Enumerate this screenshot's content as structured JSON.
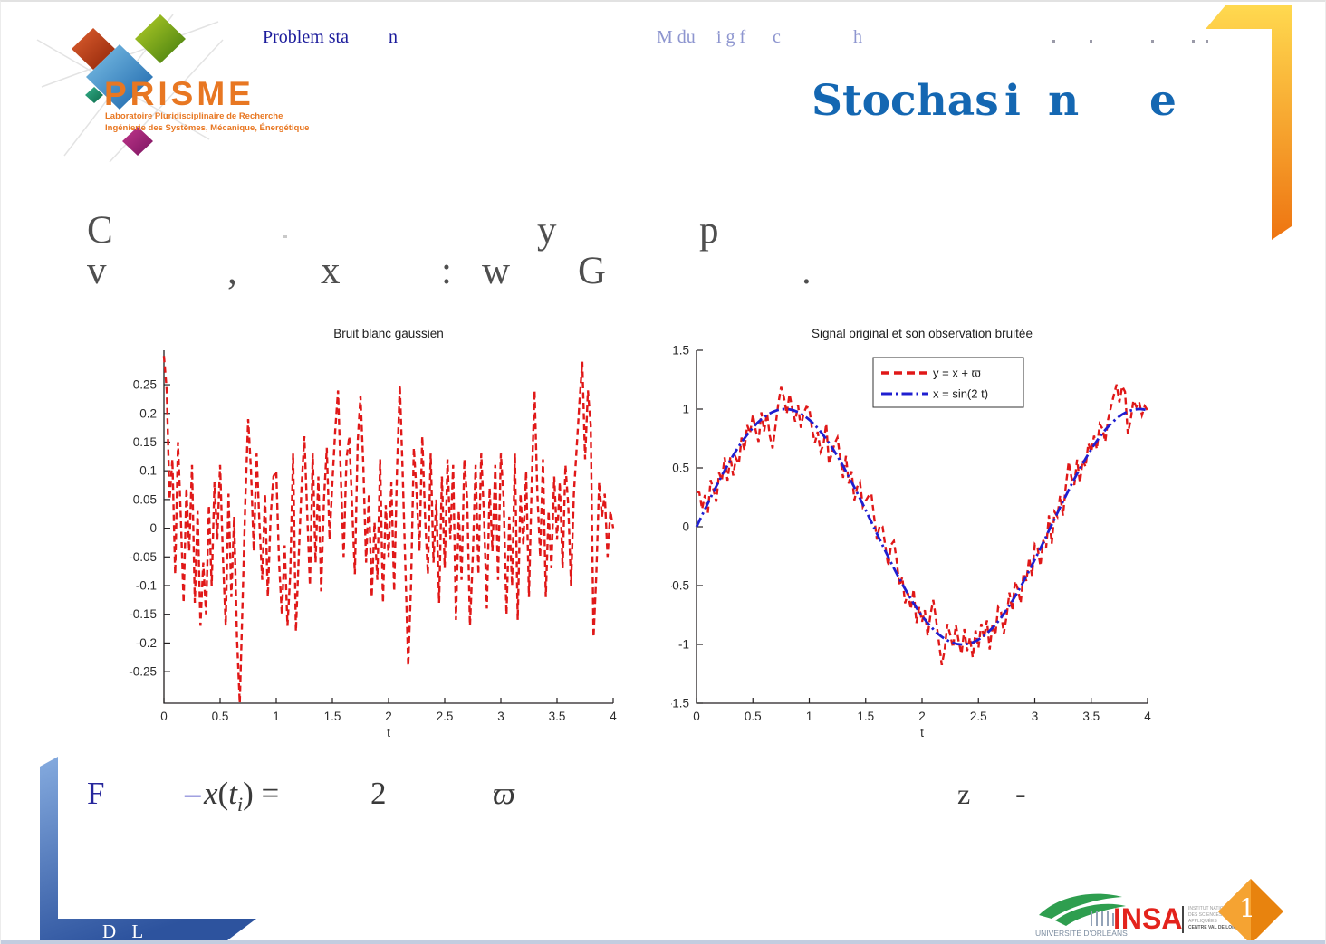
{
  "header": {
    "left_fragment": "Problem sta",
    "left_fragment2": "n",
    "center_fragments": [
      "M du",
      "i g f",
      "c",
      "h"
    ]
  },
  "logo_prisme": {
    "name": "PRISME",
    "line1": "Laboratoire Pluridisciplinaire de Recherche",
    "line2": "Ingénierie des Systèmes, Mécanique, Énergétique"
  },
  "title": {
    "fragments": [
      "Stochas",
      "i",
      "n",
      "e"
    ],
    "color": "#1467b2"
  },
  "body_text": {
    "line1": [
      "C",
      "y",
      "p"
    ],
    "line2": [
      "v",
      ",",
      "x",
      ":",
      "w",
      "G",
      "."
    ]
  },
  "formula": {
    "f": "F",
    "minus": "–",
    "x_var": "x",
    "open": "(",
    "t_var": "t",
    "sub": "i",
    "close": ") =",
    "two": "2",
    "omega": "ϖ",
    "z": "z",
    "dash": "-"
  },
  "footer": {
    "initials": "D L",
    "page_number": "1"
  },
  "logos": {
    "univ_orleans": "UNIVERSITÉ D'ORLÉANS",
    "insa": "INSA",
    "insa_sub": [
      "INSTITUT NATIONAL",
      "DES SCIENCES",
      "APPLIQUÉES",
      "CENTRE VAL DE LOIRE"
    ]
  },
  "colors": {
    "plot_red": "#e01818",
    "plot_blue": "#1f1fd0",
    "accent_orange": "#ee7411",
    "accent_yellow": "#ffd94f",
    "accent_blue_dark": "#2d539e",
    "accent_blue_light": "#85abdf",
    "title_blue": "#1467b2"
  },
  "chart_data": [
    {
      "type": "line",
      "title": "Bruit blanc gaussien",
      "xlabel": "t",
      "ylabel": "",
      "xlim": [
        0,
        4
      ],
      "ylim": [
        -0.305,
        0.31
      ],
      "xticks": [
        0,
        0.5,
        1,
        1.5,
        2,
        2.5,
        3,
        3.5,
        4
      ],
      "yticks": [
        0.25,
        0.2,
        0.15,
        0.1,
        0.05,
        0,
        -0.05,
        -0.1,
        -0.15,
        -0.2,
        -0.25
      ],
      "grid": false,
      "series": [
        {
          "name": "gaussian white noise",
          "color": "#e01818",
          "style": "dashed",
          "dt": 0.025,
          "values": [
            0.3,
            0.24,
            0.05,
            0.12,
            -0.08,
            0.15,
            0.02,
            -0.13,
            0.07,
            -0.04,
            0.11,
            -0.13,
            0.03,
            -0.17,
            -0.06,
            -0.15,
            0.04,
            -0.1,
            0.08,
            -0.02,
            0.11,
            -0.05,
            -0.17,
            0.06,
            -0.12,
            0.02,
            -0.19,
            -0.31,
            -0.13,
            0.05,
            0.19,
            0.1,
            -0.04,
            0.13,
            0.01,
            -0.09,
            0.06,
            -0.12,
            0.02,
            0.09,
            0.1,
            -0.06,
            -0.15,
            -0.03,
            -0.17,
            -0.08,
            0.13,
            -0.18,
            -0.05,
            0.07,
            0.16,
            0.03,
            -0.1,
            0.13,
            -0.06,
            0.09,
            -0.11,
            0.05,
            0.14,
            -0.02,
            0.08,
            0.17,
            0.24,
            0.09,
            -0.05,
            0.12,
            0.16,
            0.04,
            -0.08,
            0.15,
            0.23,
            0.11,
            -0.06,
            0.06,
            -0.12,
            0.01,
            -0.09,
            0.12,
            -0.13,
            0.04,
            -0.05,
            0.08,
            -0.11,
            0.1,
            0.25,
            0.1,
            -0.07,
            -0.24,
            -0.1,
            0.14,
            0.06,
            -0.04,
            0.16,
            0.02,
            -0.08,
            0.13,
            -0.06,
            0.05,
            -0.13,
            0.09,
            -0.07,
            0.12,
            -0.02,
            0.11,
            -0.16,
            0.03,
            -0.09,
            0.12,
            0.05,
            -0.17,
            -0.05,
            0.11,
            -0.08,
            0.13,
            0.02,
            -0.14,
            0.07,
            -0.04,
            0.11,
            -0.09,
            0.13,
            0.05,
            -0.15,
            0.02,
            -0.1,
            0.13,
            -0.16,
            0.06,
            -0.03,
            0.1,
            -0.12,
            0.08,
            0.24,
            0.06,
            -0.05,
            0.12,
            -0.12,
            0.03,
            -0.07,
            0.09,
            -0.02,
            0.08,
            -0.07,
            0.11,
            0.04,
            -0.1,
            0.06,
            0.14,
            0.22,
            0.29,
            0.12,
            0.24,
            0.18,
            -0.19,
            -0.08,
            0.08,
            0.02,
            0.06,
            -0.05,
            0.03,
            0.0
          ]
        }
      ]
    },
    {
      "type": "line",
      "title": "Signal original et son observation bruitée",
      "xlabel": "t",
      "ylabel": "",
      "xlim": [
        0,
        4
      ],
      "ylim": [
        -1.5,
        1.5
      ],
      "xticks": [
        0,
        0.5,
        1,
        1.5,
        2,
        2.5,
        3,
        3.5,
        4
      ],
      "yticks": [
        1.5,
        1,
        0.5,
        0,
        -0.5,
        -1,
        -1.5
      ],
      "grid": false,
      "legend": {
        "position": "top-center",
        "entries": [
          {
            "label": "y  = x + ϖ",
            "color": "#e01818",
            "style": "dashed"
          },
          {
            "label": "x = sin(2 t)",
            "color": "#1f1fd0",
            "style": "dashdot"
          }
        ]
      },
      "series": [
        {
          "name": "y = x + ϖ",
          "color": "#e01818",
          "style": "dashed",
          "derive": "signal_plus_noise",
          "signal": {
            "type": "sine",
            "amplitude": 1,
            "angular_frequency": 2
          },
          "dt": 0.025
        },
        {
          "name": "x = sin(2 t)",
          "color": "#1f1fd0",
          "style": "dashdot",
          "signal": {
            "type": "sine",
            "amplitude": 1,
            "angular_frequency": 2
          },
          "dt": 0.02
        }
      ]
    }
  ]
}
